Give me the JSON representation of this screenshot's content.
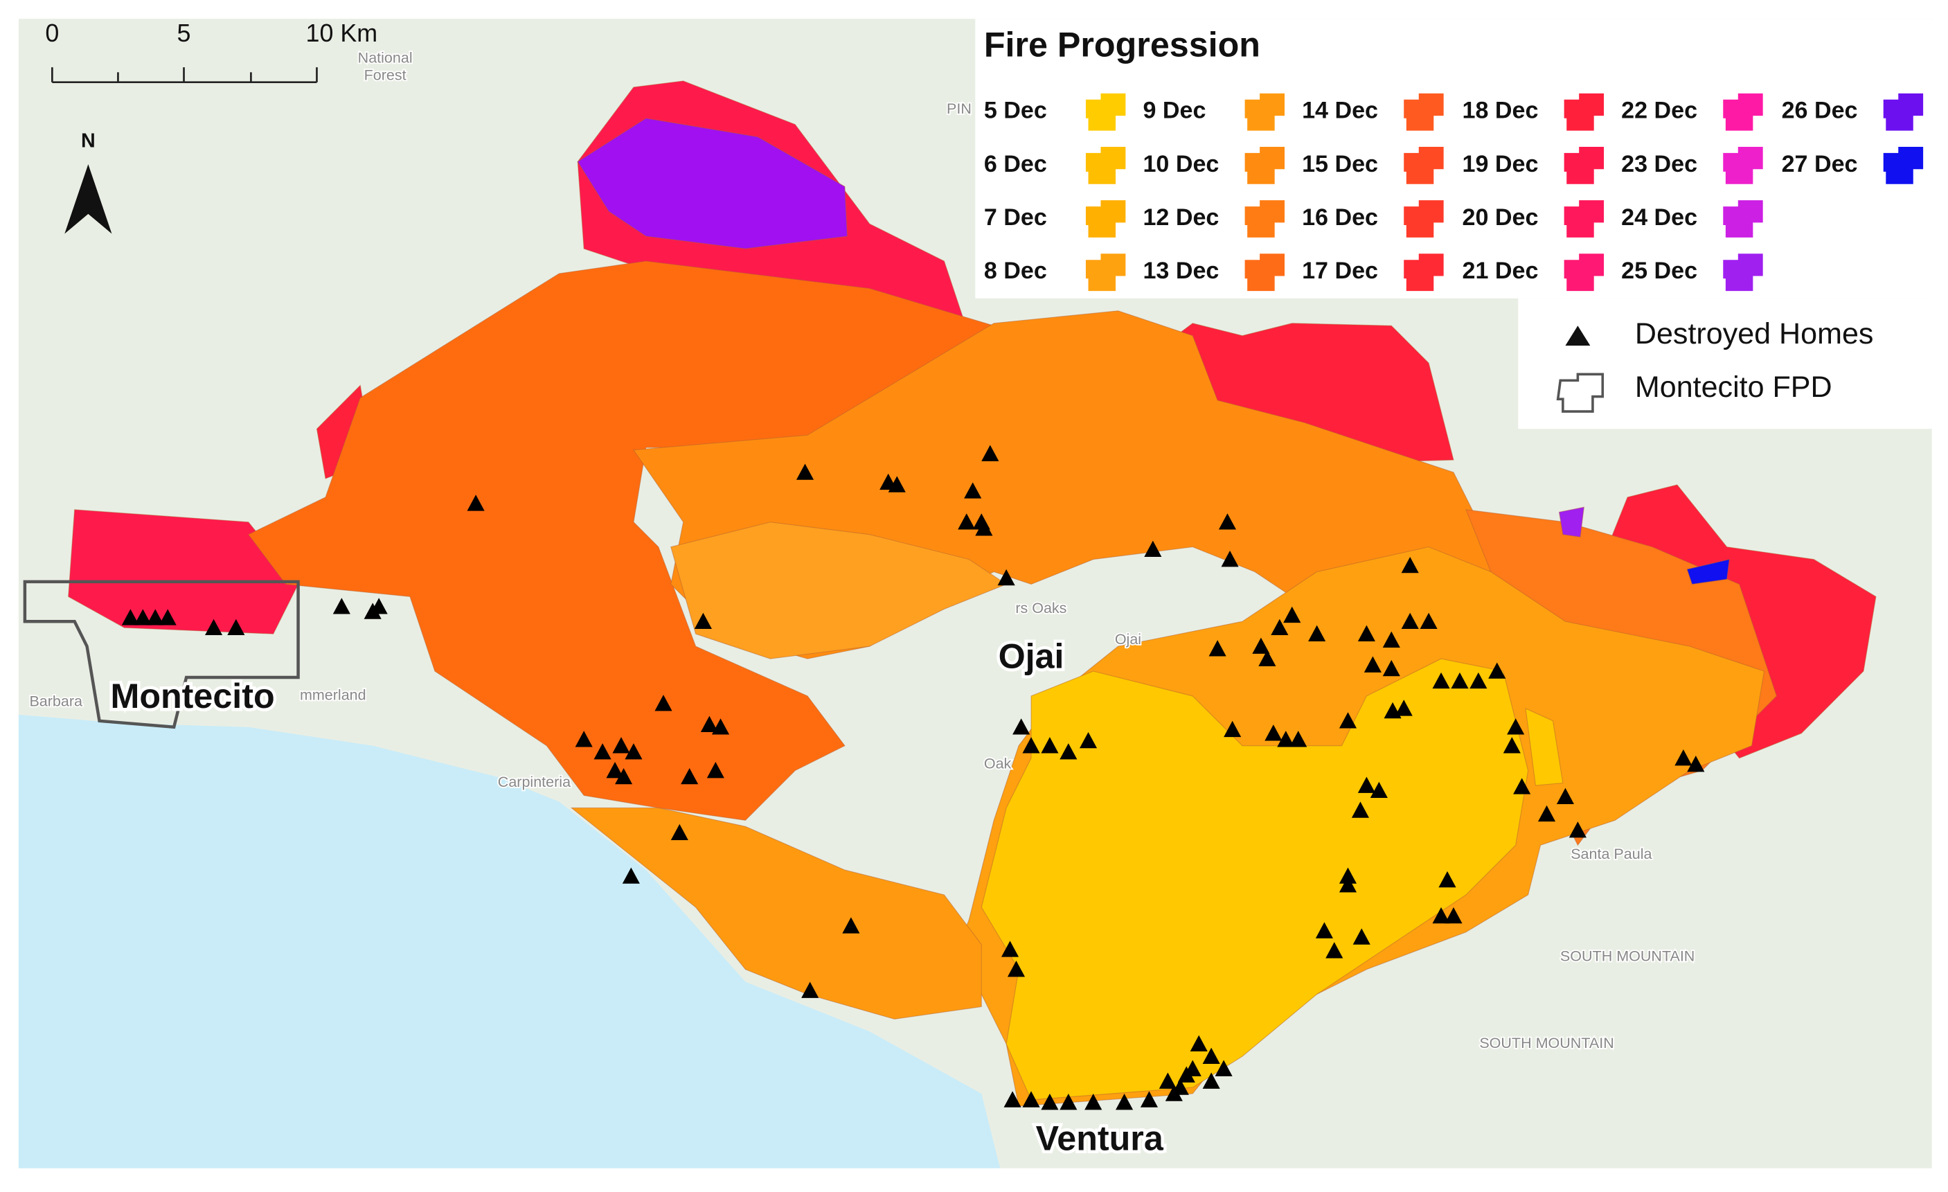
{
  "scale_bar": {
    "labels": [
      "0",
      "5",
      "10 Km"
    ]
  },
  "north_arrow": {
    "label": "N"
  },
  "legend": {
    "title": "Fire Progression",
    "items": [
      {
        "label": "5 Dec",
        "color": "#ffcc00"
      },
      {
        "label": "6 Dec",
        "color": "#ffbe00"
      },
      {
        "label": "7 Dec",
        "color": "#ffb000"
      },
      {
        "label": "8 Dec",
        "color": "#ffa210"
      },
      {
        "label": "9 Dec",
        "color": "#ff9a10"
      },
      {
        "label": "10 Dec",
        "color": "#ff8c10"
      },
      {
        "label": "12 Dec",
        "color": "#ff7c14"
      },
      {
        "label": "13 Dec",
        "color": "#ff6c18"
      },
      {
        "label": "14 Dec",
        "color": "#ff5a20"
      },
      {
        "label": "15 Dec",
        "color": "#ff4a24"
      },
      {
        "label": "16 Dec",
        "color": "#ff3a2a"
      },
      {
        "label": "17 Dec",
        "color": "#ff2a34"
      },
      {
        "label": "18 Dec",
        "color": "#ff203c"
      },
      {
        "label": "19 Dec",
        "color": "#ff1a4c"
      },
      {
        "label": "20 Dec",
        "color": "#ff185c"
      },
      {
        "label": "21 Dec",
        "color": "#ff1874"
      },
      {
        "label": "22 Dec",
        "color": "#ff1aa6"
      },
      {
        "label": "23 Dec",
        "color": "#ee20cc"
      },
      {
        "label": "24 Dec",
        "color": "#cc20e4"
      },
      {
        "label": "25 Dec",
        "color": "#a020f0"
      },
      {
        "label": "26 Dec",
        "color": "#6c10f0"
      },
      {
        "label": "27 Dec",
        "color": "#1010f0"
      }
    ],
    "homes": "Destroyed Homes",
    "boundary": "Montecito FPD"
  },
  "places": [
    "Montecito",
    "Ojai",
    "Ventura"
  ],
  "basemap_labels": [
    "Carpinteria",
    "Santa Paula",
    "SOUTH MOUNTAIN",
    "SOUTH MOUNTAIN",
    "Oak",
    "Ojai",
    "rs Oaks",
    "Barbara",
    "mmerland",
    "PIN",
    "National",
    "Forest"
  ]
}
